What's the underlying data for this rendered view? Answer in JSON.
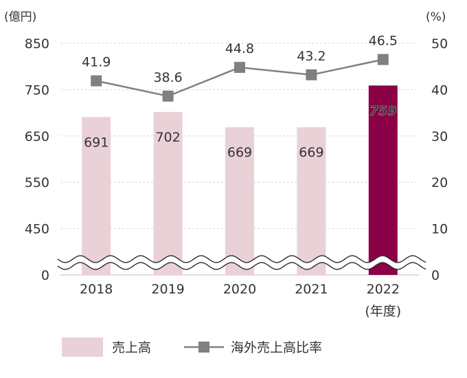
{
  "chart_data": {
    "type": "bar+line",
    "categories": [
      "2018",
      "2019",
      "2020",
      "2021",
      "2022"
    ],
    "category_sublabels": [
      "",
      "",
      "",
      "",
      "(年度)"
    ],
    "left_unit": "(億円)",
    "right_unit": "(%)",
    "left_ticks": [
      "850",
      "750",
      "650",
      "550",
      "450",
      "0"
    ],
    "right_ticks": [
      "50",
      "40",
      "30",
      "20",
      "10",
      "0"
    ],
    "left_axis_broken": true,
    "ylim_left_upper": [
      350,
      850
    ],
    "ylim_right": [
      0,
      50
    ],
    "grid": true,
    "series": [
      {
        "name": "売上高",
        "type": "bar",
        "axis": "left",
        "values": [
          691,
          702,
          669,
          669,
          759
        ],
        "labels": [
          "691",
          "702",
          "669",
          "669",
          "759"
        ],
        "color": "#ead0d7",
        "highlight_color": "#8b0046"
      },
      {
        "name": "海外売上高比率",
        "type": "line",
        "axis": "right",
        "values": [
          41.9,
          38.6,
          44.8,
          43.2,
          46.5
        ],
        "labels": [
          "41.9",
          "38.6",
          "44.8",
          "43.2",
          "46.5"
        ],
        "color": "#808080",
        "highlight_label_color": "#8b1a4f"
      }
    ],
    "legend_position": "bottom-left"
  }
}
